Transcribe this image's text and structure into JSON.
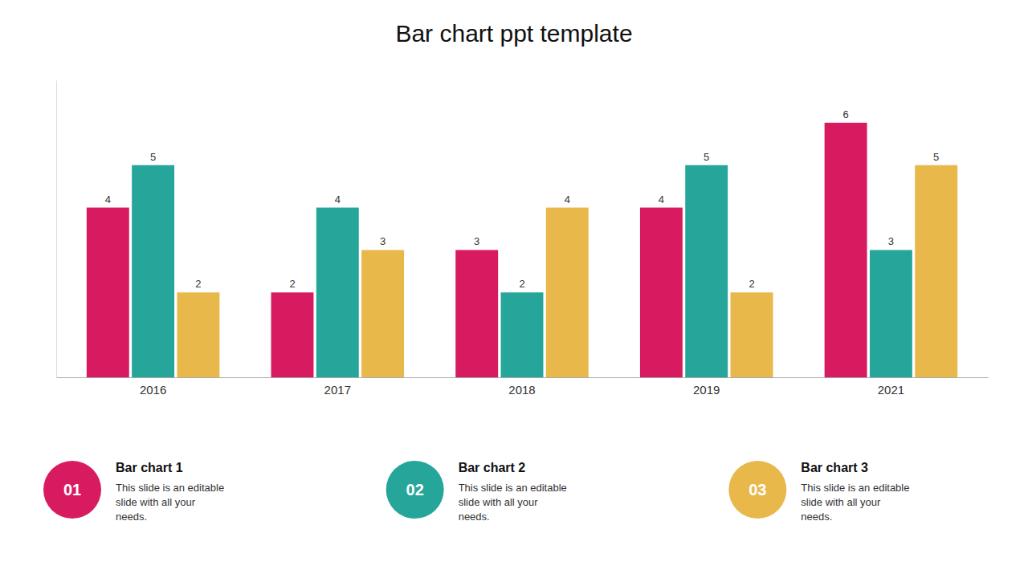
{
  "chart_data": {
    "type": "bar",
    "title": "Bar chart ppt template",
    "categories": [
      "2016",
      "2017",
      "2018",
      "2019",
      "2021"
    ],
    "series": [
      {
        "name": "Bar chart 1",
        "color": "#D81B60",
        "values": [
          4,
          2,
          3,
          4,
          6
        ]
      },
      {
        "name": "Bar chart 2",
        "color": "#26A69A",
        "values": [
          5,
          4,
          2,
          5,
          3
        ]
      },
      {
        "name": "Bar chart 3",
        "color": "#E8B84B",
        "values": [
          2,
          3,
          4,
          2,
          5
        ]
      }
    ],
    "ylim": [
      0,
      7
    ],
    "grid": false,
    "legend": "bottom",
    "data_labels": true,
    "tick_labels": "x",
    "annotations": [
      "01",
      "This slide is an editable\nslide with all your\nneeds.",
      "02",
      "This slide is an editable\nslide with all your\nneeds.",
      "03",
      "This slide is an editable\nslide with all your\nneeds."
    ]
  }
}
